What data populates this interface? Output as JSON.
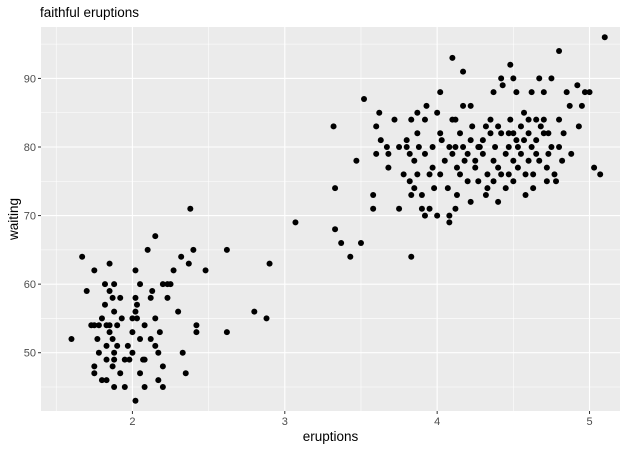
{
  "chart_data": {
    "type": "scatter",
    "title": "faithful eruptions",
    "xlabel": "eruptions",
    "ylabel": "waiting",
    "xlim": [
      1.4,
      5.2
    ],
    "ylim": [
      41.5,
      97.5
    ],
    "x_ticks": [
      2,
      3,
      4,
      5
    ],
    "y_ticks": [
      50,
      60,
      70,
      80,
      90
    ],
    "x_tick_labels": [
      "2",
      "3",
      "4",
      "5"
    ],
    "y_tick_labels": [
      "50",
      "60",
      "70",
      "80",
      "90"
    ],
    "grid": true,
    "point_color": "#000000",
    "panel_color": "#ebebeb",
    "points": [
      [
        1.6,
        52
      ],
      [
        1.67,
        64
      ],
      [
        1.7,
        59
      ],
      [
        1.73,
        54
      ],
      [
        1.75,
        62
      ],
      [
        1.75,
        54
      ],
      [
        1.75,
        48
      ],
      [
        1.75,
        47
      ],
      [
        1.77,
        52
      ],
      [
        1.78,
        54
      ],
      [
        1.78,
        50
      ],
      [
        1.8,
        55
      ],
      [
        1.8,
        46
      ],
      [
        1.82,
        60
      ],
      [
        1.82,
        57
      ],
      [
        1.83,
        54
      ],
      [
        1.83,
        51
      ],
      [
        1.83,
        49
      ],
      [
        1.83,
        46
      ],
      [
        1.85,
        63
      ],
      [
        1.85,
        59
      ],
      [
        1.85,
        54
      ],
      [
        1.85,
        53
      ],
      [
        1.87,
        58
      ],
      [
        1.87,
        52
      ],
      [
        1.87,
        48
      ],
      [
        1.88,
        60
      ],
      [
        1.88,
        56
      ],
      [
        1.88,
        50
      ],
      [
        1.88,
        49
      ],
      [
        1.88,
        45
      ],
      [
        1.9,
        54
      ],
      [
        1.9,
        51
      ],
      [
        1.92,
        58
      ],
      [
        1.92,
        47
      ],
      [
        1.93,
        55
      ],
      [
        1.95,
        49
      ],
      [
        1.95,
        45
      ],
      [
        1.97,
        51
      ],
      [
        1.98,
        49
      ],
      [
        2.0,
        55
      ],
      [
        2.0,
        53
      ],
      [
        2.0,
        50
      ],
      [
        2.02,
        62
      ],
      [
        2.02,
        58
      ],
      [
        2.02,
        56
      ],
      [
        2.02,
        43
      ],
      [
        2.03,
        57
      ],
      [
        2.03,
        55
      ],
      [
        2.05,
        60
      ],
      [
        2.05,
        52
      ],
      [
        2.05,
        47
      ],
      [
        2.07,
        49
      ],
      [
        2.08,
        54
      ],
      [
        2.08,
        49
      ],
      [
        2.08,
        45
      ],
      [
        2.1,
        65
      ],
      [
        2.12,
        58
      ],
      [
        2.12,
        52
      ],
      [
        2.13,
        59
      ],
      [
        2.15,
        67
      ],
      [
        2.15,
        55
      ],
      [
        2.15,
        51
      ],
      [
        2.17,
        50
      ],
      [
        2.17,
        46
      ],
      [
        2.18,
        53
      ],
      [
        2.2,
        60
      ],
      [
        2.2,
        48
      ],
      [
        2.2,
        45
      ],
      [
        2.23,
        60
      ],
      [
        2.23,
        58
      ],
      [
        2.25,
        60
      ],
      [
        2.27,
        62
      ],
      [
        2.3,
        56
      ],
      [
        2.32,
        64
      ],
      [
        2.33,
        50
      ],
      [
        2.35,
        47
      ],
      [
        2.37,
        63
      ],
      [
        2.38,
        71
      ],
      [
        2.4,
        65
      ],
      [
        2.42,
        54
      ],
      [
        2.42,
        53
      ],
      [
        2.48,
        62
      ],
      [
        2.62,
        65
      ],
      [
        2.62,
        53
      ],
      [
        2.8,
        56
      ],
      [
        2.88,
        55
      ],
      [
        2.9,
        63
      ],
      [
        3.07,
        69
      ],
      [
        3.32,
        83
      ],
      [
        3.33,
        74
      ],
      [
        3.33,
        68
      ],
      [
        3.37,
        66
      ],
      [
        3.43,
        64
      ],
      [
        3.47,
        78
      ],
      [
        3.5,
        66
      ],
      [
        3.52,
        87
      ],
      [
        3.58,
        73
      ],
      [
        3.58,
        71
      ],
      [
        3.6,
        83
      ],
      [
        3.6,
        79
      ],
      [
        3.62,
        85
      ],
      [
        3.63,
        81
      ],
      [
        3.67,
        80
      ],
      [
        3.68,
        79
      ],
      [
        3.68,
        77
      ],
      [
        3.72,
        84
      ],
      [
        3.75,
        71
      ],
      [
        3.75,
        80
      ],
      [
        3.78,
        76
      ],
      [
        3.8,
        81
      ],
      [
        3.8,
        80
      ],
      [
        3.82,
        79
      ],
      [
        3.82,
        75
      ],
      [
        3.83,
        84
      ],
      [
        3.83,
        64
      ],
      [
        3.83,
        73
      ],
      [
        3.85,
        78
      ],
      [
        3.85,
        74
      ],
      [
        3.87,
        85
      ],
      [
        3.87,
        82
      ],
      [
        3.87,
        76
      ],
      [
        3.88,
        80
      ],
      [
        3.9,
        73
      ],
      [
        3.9,
        71
      ],
      [
        3.92,
        84
      ],
      [
        3.92,
        79
      ],
      [
        3.92,
        70
      ],
      [
        3.93,
        86
      ],
      [
        3.95,
        76
      ],
      [
        3.95,
        71
      ],
      [
        3.97,
        80
      ],
      [
        3.97,
        77
      ],
      [
        3.98,
        74
      ],
      [
        4.0,
        85
      ],
      [
        4.0,
        70
      ],
      [
        4.02,
        88
      ],
      [
        4.02,
        82
      ],
      [
        4.02,
        76
      ],
      [
        4.03,
        81
      ],
      [
        4.05,
        78
      ],
      [
        4.07,
        74
      ],
      [
        4.08,
        80
      ],
      [
        4.08,
        70
      ],
      [
        4.08,
        69
      ],
      [
        4.1,
        93
      ],
      [
        4.1,
        84
      ],
      [
        4.1,
        79
      ],
      [
        4.12,
        84
      ],
      [
        4.12,
        80
      ],
      [
        4.12,
        71
      ],
      [
        4.13,
        73
      ],
      [
        4.13,
        77
      ],
      [
        4.15,
        82
      ],
      [
        4.15,
        76
      ],
      [
        4.17,
        91
      ],
      [
        4.17,
        86
      ],
      [
        4.17,
        80
      ],
      [
        4.18,
        78
      ],
      [
        4.2,
        75
      ],
      [
        4.2,
        79
      ],
      [
        4.22,
        86
      ],
      [
        4.22,
        81
      ],
      [
        4.22,
        72
      ],
      [
        4.23,
        83
      ],
      [
        4.25,
        78
      ],
      [
        4.25,
        77
      ],
      [
        4.27,
        80
      ],
      [
        4.27,
        75
      ],
      [
        4.28,
        80
      ],
      [
        4.3,
        81
      ],
      [
        4.3,
        79
      ],
      [
        4.32,
        83
      ],
      [
        4.32,
        73
      ],
      [
        4.33,
        76
      ],
      [
        4.33,
        74
      ],
      [
        4.35,
        84
      ],
      [
        4.35,
        82
      ],
      [
        4.37,
        88
      ],
      [
        4.37,
        78
      ],
      [
        4.37,
        75
      ],
      [
        4.38,
        80
      ],
      [
        4.4,
        83
      ],
      [
        4.4,
        77
      ],
      [
        4.4,
        72
      ],
      [
        4.42,
        90
      ],
      [
        4.42,
        82
      ],
      [
        4.42,
        76
      ],
      [
        4.43,
        89
      ],
      [
        4.45,
        79
      ],
      [
        4.45,
        74
      ],
      [
        4.47,
        82
      ],
      [
        4.47,
        80
      ],
      [
        4.47,
        76
      ],
      [
        4.48,
        92
      ],
      [
        4.48,
        84
      ],
      [
        4.5,
        90
      ],
      [
        4.5,
        82
      ],
      [
        4.5,
        78
      ],
      [
        4.5,
        75
      ],
      [
        4.52,
        88
      ],
      [
        4.52,
        81
      ],
      [
        4.53,
        80
      ],
      [
        4.53,
        77
      ],
      [
        4.55,
        83
      ],
      [
        4.55,
        79
      ],
      [
        4.57,
        85
      ],
      [
        4.57,
        81
      ],
      [
        4.58,
        76
      ],
      [
        4.58,
        73
      ],
      [
        4.6,
        84
      ],
      [
        4.6,
        82
      ],
      [
        4.6,
        78
      ],
      [
        4.62,
        88
      ],
      [
        4.62,
        80
      ],
      [
        4.63,
        74
      ],
      [
        4.63,
        76
      ],
      [
        4.65,
        84
      ],
      [
        4.65,
        81
      ],
      [
        4.65,
        79
      ],
      [
        4.67,
        90
      ],
      [
        4.67,
        78
      ],
      [
        4.68,
        83
      ],
      [
        4.7,
        88
      ],
      [
        4.7,
        84
      ],
      [
        4.7,
        82
      ],
      [
        4.72,
        77
      ],
      [
        4.72,
        75
      ],
      [
        4.73,
        82
      ],
      [
        4.73,
        79
      ],
      [
        4.75,
        90
      ],
      [
        4.75,
        80
      ],
      [
        4.77,
        76
      ],
      [
        4.78,
        75
      ],
      [
        4.8,
        94
      ],
      [
        4.8,
        84
      ],
      [
        4.8,
        80
      ],
      [
        4.82,
        78
      ],
      [
        4.83,
        82
      ],
      [
        4.85,
        88
      ],
      [
        4.87,
        86
      ],
      [
        4.88,
        79
      ],
      [
        4.92,
        89
      ],
      [
        4.93,
        83
      ],
      [
        4.95,
        86
      ],
      [
        4.97,
        88
      ],
      [
        5.0,
        88
      ],
      [
        5.03,
        77
      ],
      [
        5.07,
        76
      ],
      [
        5.1,
        96
      ]
    ]
  }
}
